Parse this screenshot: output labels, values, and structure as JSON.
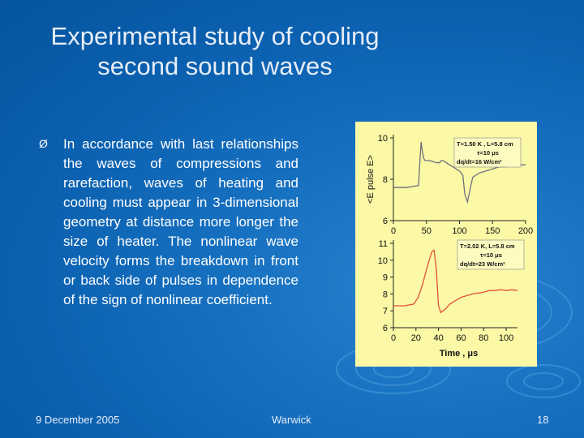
{
  "slide": {
    "title": "Experimental study of cooling second sound waves",
    "bullet_marker": "Ø",
    "bullet_text": "In accordance with last relationships the waves of compressions and rarefaction, waves of heating and cooling must appear in 3-dimensional geometry at distance more longer the size of heater. The nonlinear wave velocity forms the breakdown in front or back side of pulses in dependence of the sign of nonlinear coefficient."
  },
  "footer": {
    "date": "9 December 2005",
    "venue": "Warwick",
    "page": "18"
  },
  "colors": {
    "background": "#0a63b3",
    "figure_background": "#fbf8a6",
    "trace_upper": "#6f6f80",
    "trace_lower": "#e2513a",
    "text": "#ffffff"
  },
  "chart_data": [
    {
      "type": "line",
      "xlabel": "",
      "ylabel": "<E pulse E>",
      "xlim": [
        0,
        200
      ],
      "ylim": [
        6,
        10
      ],
      "x_ticks": [
        "0",
        "50",
        "100",
        "150",
        "200"
      ],
      "y_ticks": [
        "6",
        "8",
        "10"
      ],
      "legend_lines": [
        "T=1.50 K , L=5.8 cm",
        "τ=10 μs",
        "dq/dt=16 W/cm²"
      ],
      "series": [
        {
          "x": [
            0,
            20,
            38,
            40,
            42,
            44,
            46,
            48,
            50,
            55,
            60,
            65,
            70,
            72,
            75,
            80,
            85,
            90,
            95,
            100,
            105,
            108,
            112,
            116,
            120,
            130,
            140,
            150,
            160,
            170,
            180,
            190,
            200
          ],
          "y": [
            7.6,
            7.6,
            7.7,
            8.8,
            9.8,
            9.3,
            9.0,
            8.9,
            8.9,
            8.9,
            8.85,
            8.8,
            8.8,
            8.9,
            8.9,
            8.8,
            8.7,
            8.6,
            8.5,
            8.4,
            8.2,
            7.3,
            6.9,
            7.5,
            8.1,
            8.3,
            8.4,
            8.5,
            8.6,
            8.6,
            8.7,
            8.7,
            8.7
          ]
        }
      ]
    },
    {
      "type": "line",
      "xlabel": "Time , μs",
      "ylabel": "",
      "xlim": [
        0,
        110
      ],
      "ylim": [
        6,
        11
      ],
      "x_ticks": [
        "0",
        "20",
        "40",
        "60",
        "80",
        "100"
      ],
      "y_ticks": [
        "6",
        "7",
        "8",
        "9",
        "10",
        "11"
      ],
      "legend_lines": [
        "T=2.02 K, L=5.8 cm",
        "τ=10 μs",
        "dq/dt=23 W/cm²"
      ],
      "series": [
        {
          "x": [
            0,
            10,
            18,
            22,
            26,
            30,
            34,
            36,
            38,
            40,
            42,
            46,
            50,
            55,
            60,
            65,
            70,
            75,
            80,
            85,
            90,
            95,
            100,
            105,
            110
          ],
          "y": [
            7.3,
            7.3,
            7.4,
            7.8,
            8.6,
            9.6,
            10.5,
            10.6,
            9.5,
            7.3,
            6.9,
            7.1,
            7.4,
            7.6,
            7.8,
            7.9,
            8.0,
            8.05,
            8.1,
            8.2,
            8.2,
            8.25,
            8.2,
            8.25,
            8.2
          ]
        }
      ]
    }
  ]
}
